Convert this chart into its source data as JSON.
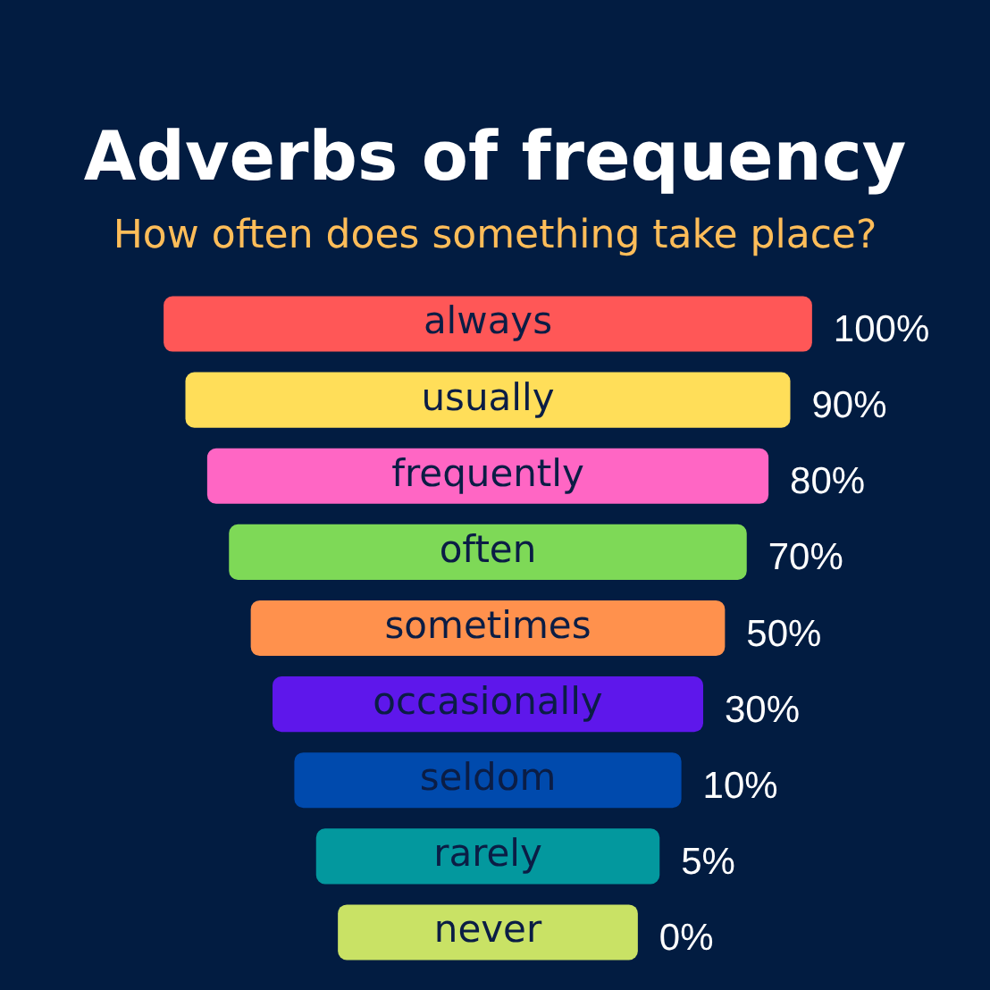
{
  "chart_data": {
    "type": "other",
    "title": "Adverbs of frequency",
    "subtitle": "How often does something take place?",
    "categories": [
      "always",
      "usually",
      "frequently",
      "often",
      "sometimes",
      "occasionally",
      "seldom",
      "rarely",
      "never"
    ],
    "values": [
      100,
      90,
      80,
      70,
      50,
      30,
      10,
      5,
      0
    ],
    "value_labels": [
      "100%",
      "90%",
      "80%",
      "70%",
      "50%",
      "30%",
      "10%",
      "5%",
      "0%"
    ],
    "colors": [
      "#ff5757",
      "#ffde59",
      "#ff66c4",
      "#7ed957",
      "#ff914d",
      "#5e17eb",
      "#004aad",
      "#03989e",
      "#c9e265"
    ]
  }
}
